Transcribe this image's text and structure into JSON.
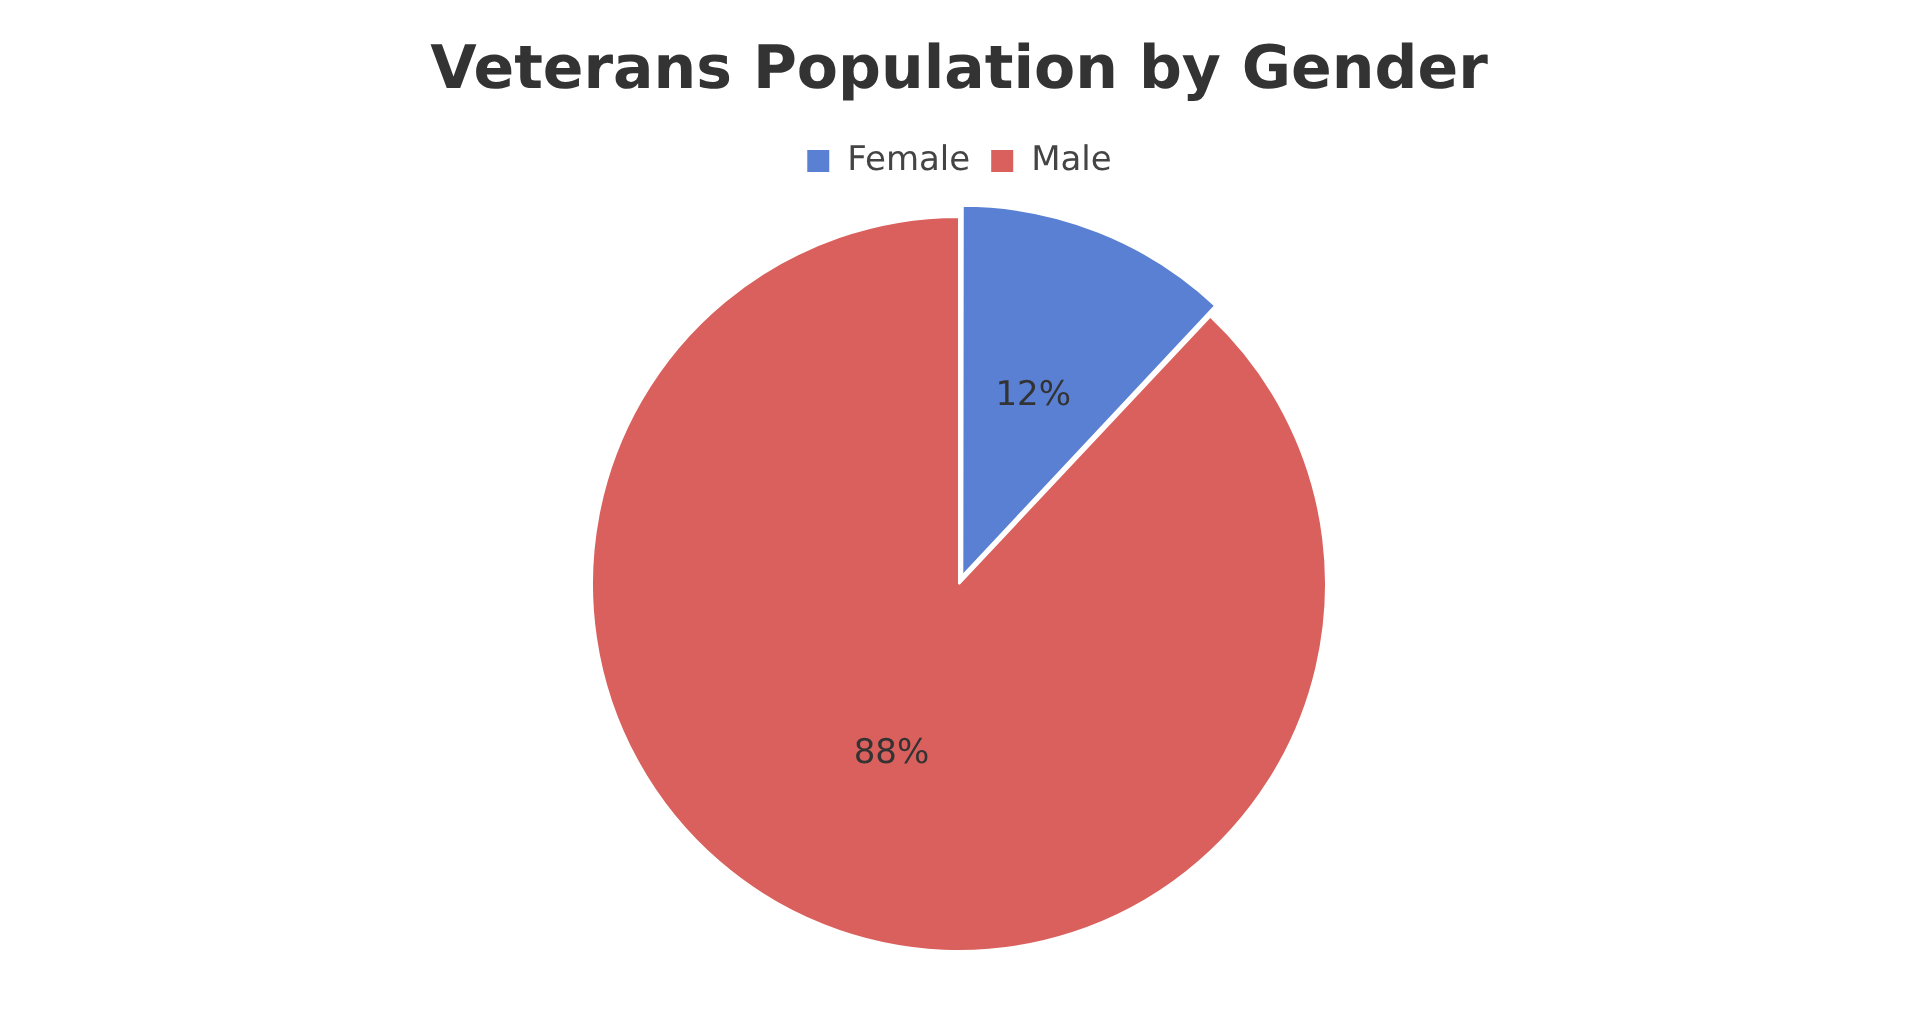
{
  "chart_data": {
    "type": "pie",
    "title": "Veterans Population by Gender",
    "categories": [
      "Female",
      "Male"
    ],
    "values": [
      12,
      88
    ],
    "colors": [
      "#5a80d4",
      "#d9605c"
    ],
    "value_labels": [
      "12%",
      "88%"
    ],
    "legend": "top"
  }
}
